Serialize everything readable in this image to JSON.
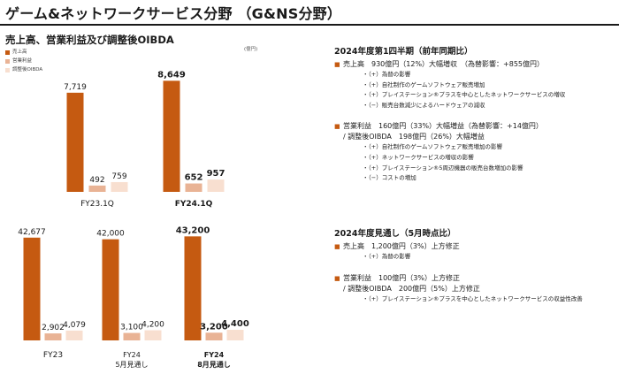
{
  "page": {
    "title": "ゲーム&ネットワークサービス分野 （G&NS分野）",
    "chart_heading": "売上高、営業利益及び調整後OIBDA",
    "unit": "(億円)"
  },
  "legend": [
    {
      "label": "売上高",
      "color": "#c55a11"
    },
    {
      "label": "営業利益",
      "color": "#e9b395"
    },
    {
      "label": "調整後OIBDA",
      "color": "#f8dfd0"
    }
  ],
  "chart_data": [
    {
      "type": "bar",
      "categories": [
        "FY23.1Q",
        "FY24.1Q"
      ],
      "category_bold": [
        false,
        true
      ],
      "series": [
        {
          "name": "売上高",
          "values": [
            7719,
            8649
          ]
        },
        {
          "name": "営業利益",
          "values": [
            492,
            652
          ]
        },
        {
          "name": "調整後OIBDA",
          "values": [
            759,
            957
          ]
        }
      ],
      "value_labels": [
        [
          "7,719",
          "492",
          "759"
        ],
        [
          "8,649",
          "652",
          "957"
        ]
      ],
      "ylim": [
        0,
        9500
      ],
      "unit": "(億円)"
    },
    {
      "type": "bar",
      "categories": [
        "FY23",
        "FY24\n5月見通し",
        "FY24\n8月見通し"
      ],
      "category_bold": [
        false,
        false,
        true
      ],
      "series": [
        {
          "name": "売上高",
          "values": [
            42677,
            42000,
            43200
          ]
        },
        {
          "name": "営業利益",
          "values": [
            2902,
            3100,
            3200
          ]
        },
        {
          "name": "調整後OIBDA",
          "values": [
            4079,
            4200,
            4400
          ]
        }
      ],
      "value_labels": [
        [
          "42,677",
          "2,902",
          "4,079"
        ],
        [
          "42,000",
          "3,100",
          "4,200"
        ],
        [
          "43,200",
          "3,200",
          "4,400"
        ]
      ],
      "ylim": [
        0,
        47000
      ]
    }
  ],
  "q1": {
    "heading": "2024年度第1四半期（前年同期比）",
    "sales": {
      "text": "売上高　930億円（12%）大幅増収　（為替影響：+855億円）",
      "items": [
        "・（+）為替の影響",
        "・（+）自社制作のゲームソフトウェア販売増加",
        "・（+）プレイステーション®プラスを中心としたネットワークサービスの増収",
        "・（−）販売台数減少によるハードウェアの減収"
      ]
    },
    "profit": {
      "text": "営業利益　160億円（33%）大幅増益（為替影響：+14億円）",
      "text2": "/ 調整後OIBDA　198億円（26%）大幅増益",
      "items": [
        "・（+）自社制作のゲームソフトウェア販売増加の影響",
        "・（+）ネットワークサービスの増収の影響",
        "・（+）プレイステーション®5周辺機器の販売台数増加の影響",
        "・（−）コストの増加"
      ]
    }
  },
  "fy": {
    "heading": "2024年度見通し（5月時点比）",
    "sales": {
      "text": "売上高　1,200億円（3%）上方修正",
      "items": [
        "・（+）為替の影響"
      ]
    },
    "profit": {
      "text": "営業利益　100億円（3%）上方修正",
      "text2": "/ 調整後OIBDA　200億円（5%）上方修正",
      "items": [
        "・（+）プレイステーション®プラスを中心としたネットワークサービスの収益性改善"
      ]
    }
  }
}
